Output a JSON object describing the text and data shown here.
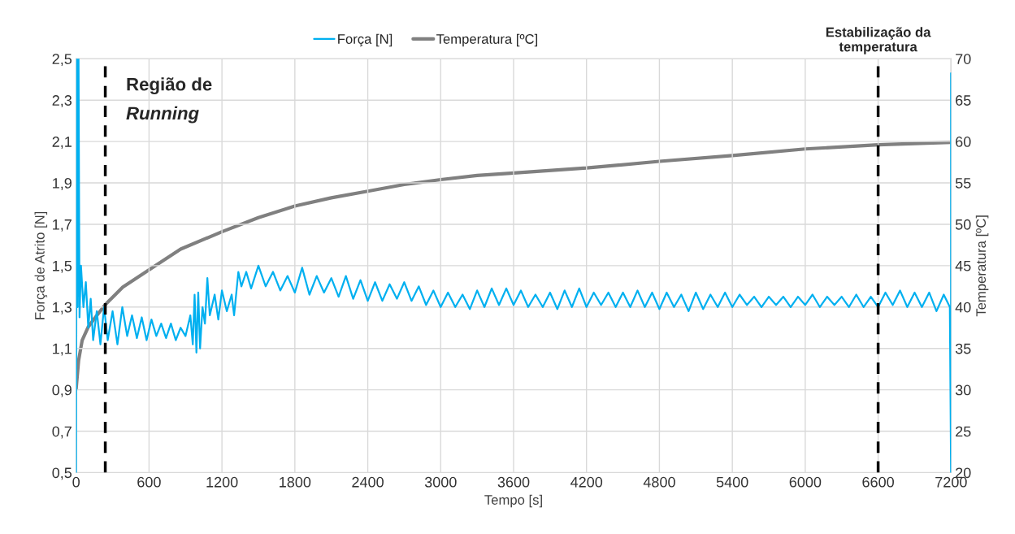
{
  "chart_data": {
    "type": "line",
    "xlabel": "Tempo [s]",
    "ylabel": "Força de Atrito [N]",
    "y2label": "Temperatura [ºC]",
    "xlim": [
      0,
      7200
    ],
    "xticks": [
      0,
      600,
      1200,
      1800,
      2400,
      3000,
      3600,
      4200,
      4800,
      5400,
      6000,
      6600,
      7200
    ],
    "ylim": [
      0.5,
      2.5
    ],
    "yticks": [
      {
        "value": 0.5,
        "label": "0,5"
      },
      {
        "value": 0.7,
        "label": "0,7"
      },
      {
        "value": 0.9,
        "label": "0,9"
      },
      {
        "value": 1.1,
        "label": "1,1"
      },
      {
        "value": 1.3,
        "label": "1,3"
      },
      {
        "value": 1.5,
        "label": "1,5"
      },
      {
        "value": 1.7,
        "label": "1,7"
      },
      {
        "value": 1.9,
        "label": "1,9"
      },
      {
        "value": 2.1,
        "label": "2,1"
      },
      {
        "value": 2.3,
        "label": "2,3"
      },
      {
        "value": 2.5,
        "label": "2,5"
      }
    ],
    "y2lim": [
      20,
      70
    ],
    "y2ticks": [
      20,
      25,
      30,
      35,
      40,
      45,
      50,
      55,
      60,
      65,
      70
    ],
    "grid": true,
    "legend": "top",
    "marker": "none",
    "line_style": "solid",
    "series": [
      {
        "name": "Força [N]",
        "color": "#00b0f0",
        "x": [
          0,
          5,
          12,
          20,
          28,
          40,
          60,
          80,
          100,
          120,
          140,
          170,
          200,
          230,
          260,
          300,
          340,
          380,
          420,
          460,
          500,
          540,
          580,
          620,
          660,
          700,
          740,
          780,
          820,
          860,
          900,
          940,
          960,
          975,
          990,
          1005,
          1020,
          1040,
          1060,
          1080,
          1100,
          1140,
          1170,
          1200,
          1240,
          1280,
          1300,
          1320,
          1335,
          1360,
          1400,
          1440,
          1500,
          1560,
          1620,
          1680,
          1740,
          1800,
          1860,
          1920,
          1980,
          2040,
          2100,
          2160,
          2220,
          2280,
          2340,
          2400,
          2460,
          2520,
          2580,
          2640,
          2700,
          2760,
          2820,
          2880,
          2940,
          3000,
          3060,
          3120,
          3180,
          3240,
          3300,
          3360,
          3420,
          3480,
          3540,
          3600,
          3660,
          3720,
          3780,
          3840,
          3900,
          3960,
          4020,
          4080,
          4140,
          4200,
          4260,
          4320,
          4380,
          4440,
          4500,
          4560,
          4620,
          4680,
          4740,
          4800,
          4860,
          4920,
          4980,
          5040,
          5100,
          5160,
          5220,
          5280,
          5340,
          5400,
          5460,
          5520,
          5580,
          5640,
          5700,
          5760,
          5820,
          5880,
          5940,
          6000,
          6060,
          6120,
          6180,
          6240,
          6300,
          6360,
          6420,
          6480,
          6540,
          6600,
          6660,
          6720,
          6780,
          6840,
          6900,
          6960,
          7020,
          7080,
          7140,
          7190,
          7200,
          7200
        ],
        "values": [
          0.5,
          2.5,
          1.3,
          2.5,
          1.25,
          1.5,
          1.3,
          1.42,
          1.2,
          1.34,
          1.14,
          1.28,
          1.12,
          1.3,
          1.14,
          1.28,
          1.12,
          1.3,
          1.16,
          1.26,
          1.15,
          1.25,
          1.14,
          1.24,
          1.16,
          1.22,
          1.15,
          1.22,
          1.14,
          1.2,
          1.16,
          1.26,
          1.12,
          1.36,
          1.08,
          1.37,
          1.1,
          1.3,
          1.22,
          1.44,
          1.26,
          1.36,
          1.24,
          1.38,
          1.28,
          1.36,
          1.26,
          1.38,
          1.47,
          1.4,
          1.47,
          1.39,
          1.5,
          1.4,
          1.47,
          1.38,
          1.45,
          1.37,
          1.49,
          1.36,
          1.45,
          1.37,
          1.44,
          1.35,
          1.45,
          1.34,
          1.43,
          1.33,
          1.42,
          1.33,
          1.41,
          1.34,
          1.42,
          1.33,
          1.4,
          1.31,
          1.38,
          1.3,
          1.37,
          1.3,
          1.36,
          1.29,
          1.38,
          1.3,
          1.39,
          1.31,
          1.39,
          1.31,
          1.38,
          1.3,
          1.36,
          1.3,
          1.37,
          1.29,
          1.38,
          1.3,
          1.39,
          1.3,
          1.37,
          1.31,
          1.37,
          1.3,
          1.37,
          1.3,
          1.38,
          1.3,
          1.37,
          1.29,
          1.37,
          1.3,
          1.36,
          1.28,
          1.37,
          1.29,
          1.36,
          1.3,
          1.37,
          1.3,
          1.36,
          1.31,
          1.35,
          1.3,
          1.35,
          1.31,
          1.35,
          1.3,
          1.35,
          1.31,
          1.36,
          1.3,
          1.35,
          1.31,
          1.35,
          1.3,
          1.36,
          1.3,
          1.35,
          1.3,
          1.37,
          1.31,
          1.38,
          1.3,
          1.37,
          1.3,
          1.37,
          1.28,
          1.36,
          1.3,
          0.5,
          2.43
        ]
      },
      {
        "name": "Temperatura [ºC]",
        "color": "#808080",
        "axis": "y2",
        "x": [
          0,
          20,
          50,
          100,
          145,
          240,
          384,
          600,
          860,
          1200,
          1500,
          1800,
          2100,
          2400,
          2700,
          3000,
          3300,
          3600,
          4200,
          4800,
          5400,
          6000,
          6600,
          7200
        ],
        "values": [
          30.1,
          33.5,
          36,
          37.6,
          38.5,
          40.3,
          42.4,
          44.5,
          47,
          49.1,
          50.8,
          52.2,
          53.2,
          54,
          54.8,
          55.4,
          55.9,
          56.2,
          56.8,
          57.6,
          58.3,
          59.1,
          59.6,
          59.9
        ]
      }
    ],
    "ref_lines": [
      {
        "axis": "x",
        "value": 240,
        "label": null,
        "color": "#000000",
        "line_style": "dashed"
      },
      {
        "axis": "x",
        "value": 6600,
        "label": "Estabilização da\ntemperatura",
        "color": "#000000",
        "line_style": "dashed"
      }
    ],
    "annotations": [
      "Região de\nRunning"
    ]
  }
}
